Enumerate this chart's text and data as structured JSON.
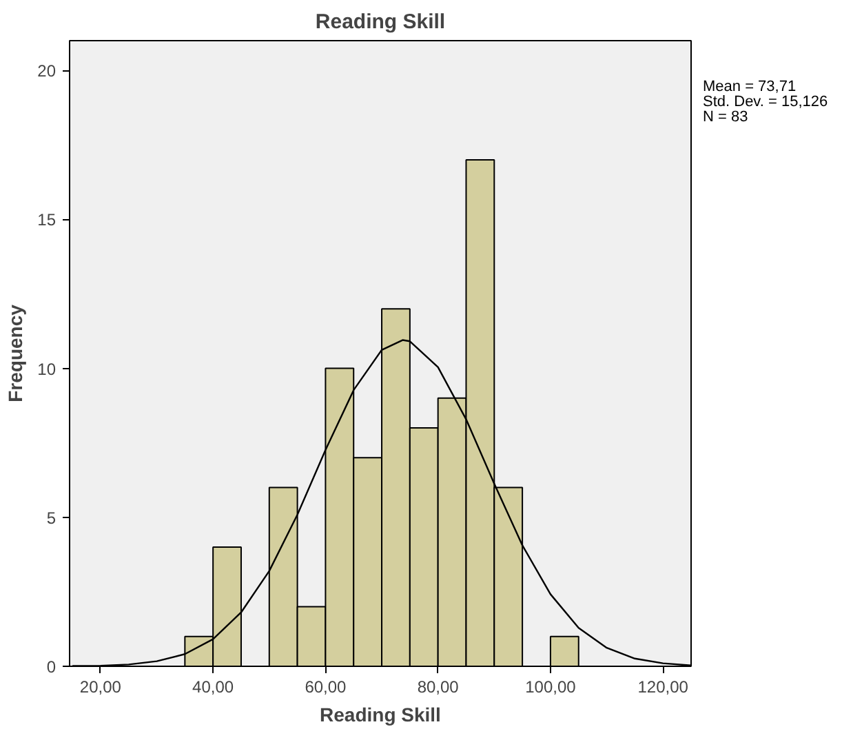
{
  "chart_data": {
    "type": "histogram",
    "title": "Reading Skill",
    "xlabel": "Reading Skill",
    "ylabel": "Frequency",
    "series": [
      {
        "color": "#d4cf9e",
        "bins": [
          35,
          40,
          45,
          50,
          55,
          60,
          65,
          70,
          75,
          80,
          85,
          90,
          95,
          100,
          105
        ],
        "values": [
          1,
          4,
          0,
          6,
          2,
          10,
          7,
          12,
          8,
          9,
          17,
          6,
          0,
          1
        ]
      },
      {
        "type": "line",
        "color": "#000000",
        "x": [
          15,
          20,
          25,
          30,
          35,
          40,
          45,
          50,
          55,
          60,
          65,
          70,
          73.71,
          75,
          80,
          85,
          90,
          95,
          100,
          105,
          110,
          115,
          120,
          125
        ],
        "values": [
          0.01,
          0.02,
          0.06,
          0.17,
          0.41,
          0.91,
          1.81,
          3.2,
          5.09,
          7.26,
          9.27,
          10.62,
          10.95,
          10.91,
          10.04,
          8.29,
          6.13,
          4.06,
          2.42,
          1.29,
          0.62,
          0.26,
          0.1,
          0.03
        ]
      }
    ],
    "xlim": [
      14.5,
      125
    ],
    "ylim": [
      0,
      21
    ],
    "xticks": [
      {
        "value": 20,
        "label": "20,00"
      },
      {
        "value": 40,
        "label": "40,00"
      },
      {
        "value": 60,
        "label": "60,00"
      },
      {
        "value": 80,
        "label": "80,00"
      },
      {
        "value": 100,
        "label": "100,00"
      },
      {
        "value": 120,
        "label": "120,00"
      }
    ],
    "yticks": [
      0,
      5,
      10,
      15,
      20
    ],
    "grid": false,
    "annotations": [
      "Mean = 73,71",
      "Std. Dev. = 15,126",
      "N = 83"
    ]
  }
}
